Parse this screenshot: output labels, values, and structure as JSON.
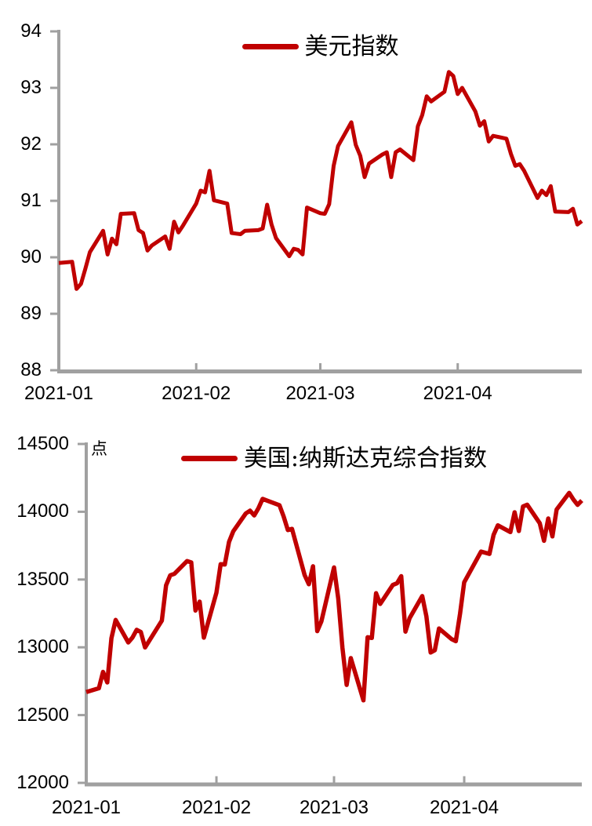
{
  "page": {
    "background": "#ffffff"
  },
  "chart_data": [
    {
      "type": "line",
      "legend": "美元指数",
      "unit": "",
      "legend_position": "top-center",
      "grid": false,
      "line_color": "#C00000",
      "axis_color": "#A0A0A0",
      "ylim": [
        88,
        94
      ],
      "y_ticks": [
        94,
        93,
        92,
        91,
        90,
        89,
        88
      ],
      "x_range": [
        "2021-01-01",
        "2021-04-29"
      ],
      "x_ticks": [
        {
          "label": "2021-01",
          "date": "2021-01-01",
          "mark": false
        },
        {
          "label": "2021-02",
          "date": "2021-02-01",
          "mark": true
        },
        {
          "label": "2021-03",
          "date": "2021-03-01",
          "mark": true
        },
        {
          "label": "2021-04",
          "date": "2021-04-01",
          "mark": true
        }
      ],
      "x": [
        "2021-01-01",
        "2021-01-04",
        "2021-01-05",
        "2021-01-06",
        "2021-01-07",
        "2021-01-08",
        "2021-01-11",
        "2021-01-12",
        "2021-01-13",
        "2021-01-14",
        "2021-01-15",
        "2021-01-18",
        "2021-01-19",
        "2021-01-20",
        "2021-01-21",
        "2021-01-22",
        "2021-01-25",
        "2021-01-26",
        "2021-01-27",
        "2021-01-28",
        "2021-01-29",
        "2021-02-01",
        "2021-02-02",
        "2021-02-03",
        "2021-02-04",
        "2021-02-05",
        "2021-02-08",
        "2021-02-09",
        "2021-02-10",
        "2021-02-11",
        "2021-02-12",
        "2021-02-15",
        "2021-02-16",
        "2021-02-17",
        "2021-02-18",
        "2021-02-19",
        "2021-02-22",
        "2021-02-23",
        "2021-02-24",
        "2021-02-25",
        "2021-02-26",
        "2021-03-01",
        "2021-03-02",
        "2021-03-03",
        "2021-03-04",
        "2021-03-05",
        "2021-03-08",
        "2021-03-09",
        "2021-03-10",
        "2021-03-11",
        "2021-03-12",
        "2021-03-15",
        "2021-03-16",
        "2021-03-17",
        "2021-03-18",
        "2021-03-19",
        "2021-03-22",
        "2021-03-23",
        "2021-03-24",
        "2021-03-25",
        "2021-03-26",
        "2021-03-29",
        "2021-03-30",
        "2021-03-31",
        "2021-04-01",
        "2021-04-02",
        "2021-04-05",
        "2021-04-06",
        "2021-04-07",
        "2021-04-08",
        "2021-04-09",
        "2021-04-12",
        "2021-04-13",
        "2021-04-14",
        "2021-04-15",
        "2021-04-16",
        "2021-04-19",
        "2021-04-20",
        "2021-04-21",
        "2021-04-22",
        "2021-04-23",
        "2021-04-26",
        "2021-04-27",
        "2021-04-28",
        "2021-04-29"
      ],
      "values": [
        89.9,
        89.92,
        89.44,
        89.53,
        89.8,
        90.09,
        90.47,
        90.05,
        90.33,
        90.23,
        90.77,
        90.78,
        90.48,
        90.43,
        90.12,
        90.21,
        90.37,
        90.15,
        90.63,
        90.44,
        90.56,
        90.95,
        91.18,
        91.15,
        91.53,
        91.01,
        90.95,
        90.43,
        90.42,
        90.41,
        90.47,
        90.48,
        90.51,
        90.93,
        90.58,
        90.34,
        90.02,
        90.15,
        90.13,
        90.05,
        90.88,
        90.78,
        90.77,
        90.94,
        91.62,
        91.97,
        92.39,
        91.99,
        91.8,
        91.42,
        91.66,
        91.82,
        91.86,
        91.42,
        91.86,
        91.91,
        91.72,
        92.32,
        92.52,
        92.85,
        92.76,
        92.93,
        93.28,
        93.21,
        92.89,
        93.0,
        92.58,
        92.33,
        92.41,
        92.05,
        92.15,
        92.1,
        91.83,
        91.62,
        91.65,
        91.53,
        91.05,
        91.18,
        91.1,
        91.26,
        90.81,
        90.8,
        90.86,
        90.58,
        90.64
      ]
    },
    {
      "type": "line",
      "legend": "美国:纳斯达克综合指数",
      "unit": "点",
      "legend_position": "top-center",
      "grid": false,
      "line_color": "#C00000",
      "axis_color": "#A0A0A0",
      "ylim": [
        12000,
        14500
      ],
      "y_ticks": [
        14500,
        14000,
        13500,
        13000,
        12500,
        12000
      ],
      "x_range": [
        "2021-01-01",
        "2021-04-29"
      ],
      "x_ticks": [
        {
          "label": "2021-01",
          "date": "2021-01-01",
          "mark": false
        },
        {
          "label": "2021-02",
          "date": "2021-02-01",
          "mark": true
        },
        {
          "label": "2021-03",
          "date": "2021-03-01",
          "mark": true
        },
        {
          "label": "2021-04",
          "date": "2021-04-01",
          "mark": true
        }
      ],
      "x": [
        "2021-01-01",
        "2021-01-04",
        "2021-01-05",
        "2021-01-06",
        "2021-01-07",
        "2021-01-08",
        "2021-01-11",
        "2021-01-12",
        "2021-01-13",
        "2021-01-14",
        "2021-01-15",
        "2021-01-19",
        "2021-01-20",
        "2021-01-21",
        "2021-01-22",
        "2021-01-25",
        "2021-01-26",
        "2021-01-27",
        "2021-01-28",
        "2021-01-29",
        "2021-02-01",
        "2021-02-02",
        "2021-02-03",
        "2021-02-04",
        "2021-02-05",
        "2021-02-08",
        "2021-02-09",
        "2021-02-10",
        "2021-02-11",
        "2021-02-12",
        "2021-02-16",
        "2021-02-17",
        "2021-02-18",
        "2021-02-19",
        "2021-02-22",
        "2021-02-23",
        "2021-02-24",
        "2021-02-25",
        "2021-02-26",
        "2021-03-01",
        "2021-03-02",
        "2021-03-03",
        "2021-03-04",
        "2021-03-05",
        "2021-03-08",
        "2021-03-09",
        "2021-03-10",
        "2021-03-11",
        "2021-03-12",
        "2021-03-15",
        "2021-03-16",
        "2021-03-17",
        "2021-03-18",
        "2021-03-19",
        "2021-03-22",
        "2021-03-23",
        "2021-03-24",
        "2021-03-25",
        "2021-03-26",
        "2021-03-29",
        "2021-03-30",
        "2021-03-31",
        "2021-04-01",
        "2021-04-05",
        "2021-04-06",
        "2021-04-07",
        "2021-04-08",
        "2021-04-09",
        "2021-04-12",
        "2021-04-13",
        "2021-04-14",
        "2021-04-15",
        "2021-04-16",
        "2021-04-19",
        "2021-04-20",
        "2021-04-21",
        "2021-04-22",
        "2021-04-23",
        "2021-04-26",
        "2021-04-27",
        "2021-04-28",
        "2021-04-29"
      ],
      "values": [
        12670,
        12698,
        12819,
        12741,
        13067,
        13202,
        13036,
        13072,
        13129,
        13113,
        12999,
        13197,
        13457,
        13531,
        13543,
        13636,
        13626,
        13271,
        13337,
        13071,
        13403,
        13613,
        13611,
        13778,
        13856,
        13988,
        14008,
        13973,
        14026,
        14095,
        14048,
        13966,
        13865,
        13874,
        13533,
        13465,
        13598,
        13119,
        13192,
        13589,
        13359,
        12998,
        12723,
        12920,
        12609,
        13074,
        13069,
        13399,
        13320,
        13460,
        13472,
        13525,
        13116,
        13215,
        13378,
        13228,
        12962,
        12978,
        13139,
        13060,
        13045,
        13247,
        13480,
        13706,
        13698,
        13689,
        13829,
        13900,
        13850,
        13996,
        13858,
        14039,
        14052,
        13915,
        13786,
        13950,
        13818,
        14017,
        14139,
        14090,
        14051,
        14083
      ]
    }
  ]
}
